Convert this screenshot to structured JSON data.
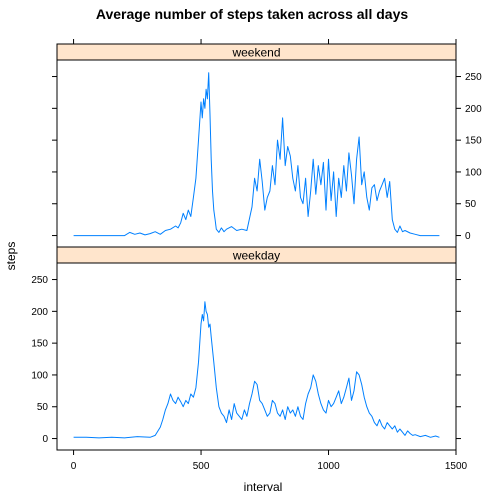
{
  "chart_data": {
    "type": "line",
    "title": "Average number of steps taken across all days",
    "xlabel": "interval",
    "ylabel": "steps",
    "xlim": [
      -65,
      1500
    ],
    "ylim": [
      -18,
      276
    ],
    "x_ticks": [
      0,
      500,
      1000,
      1500
    ],
    "y_ticks": [
      0,
      50,
      100,
      150,
      200,
      250
    ],
    "panels": [
      {
        "name": "weekend",
        "y_axis_side": "right",
        "series": [
          {
            "name": "weekend",
            "x": [
              0,
              100,
              200,
              220,
              240,
              260,
              280,
              300,
              320,
              340,
              360,
              380,
              400,
              410,
              420,
              430,
              440,
              450,
              460,
              470,
              480,
              490,
              500,
              505,
              510,
              515,
              520,
              525,
              530,
              535,
              540,
              545,
              550,
              555,
              560,
              570,
              580,
              590,
              600,
              620,
              640,
              660,
              680,
              700,
              710,
              720,
              730,
              740,
              750,
              760,
              770,
              780,
              790,
              800,
              810,
              820,
              830,
              840,
              850,
              860,
              870,
              880,
              890,
              900,
              910,
              920,
              930,
              940,
              950,
              960,
              970,
              980,
              990,
              1000,
              1010,
              1020,
              1030,
              1040,
              1050,
              1060,
              1070,
              1080,
              1090,
              1100,
              1110,
              1120,
              1130,
              1140,
              1150,
              1160,
              1170,
              1180,
              1190,
              1200,
              1210,
              1220,
              1230,
              1240,
              1250,
              1260,
              1270,
              1280,
              1290,
              1300,
              1320,
              1340,
              1360,
              1380,
              1400,
              1435
            ],
            "y": [
              0,
              0,
              0,
              5,
              2,
              4,
              1,
              3,
              6,
              2,
              8,
              10,
              15,
              12,
              20,
              35,
              25,
              40,
              30,
              60,
              90,
              150,
              210,
              185,
              215,
              200,
              230,
              215,
              256,
              190,
              120,
              70,
              40,
              25,
              10,
              5,
              12,
              6,
              10,
              14,
              8,
              10,
              8,
              45,
              90,
              70,
              120,
              85,
              40,
              60,
              70,
              110,
              80,
              150,
              120,
              185,
              110,
              140,
              125,
              90,
              70,
              110,
              60,
              50,
              90,
              30,
              70,
              120,
              65,
              110,
              80,
              115,
              40,
              120,
              55,
              100,
              30,
              90,
              60,
              110,
              70,
              130,
              95,
              50,
              120,
              155,
              80,
              100,
              60,
              40,
              75,
              80,
              55,
              70,
              80,
              90,
              60,
              85,
              25,
              10,
              5,
              15,
              6,
              8,
              4,
              2,
              0,
              0,
              0,
              0
            ]
          }
        ]
      },
      {
        "name": "weekday",
        "y_axis_side": "left",
        "series": [
          {
            "name": "weekday",
            "x": [
              0,
              50,
              100,
              150,
              200,
              250,
              300,
              320,
              340,
              350,
              360,
              370,
              380,
              390,
              400,
              410,
              420,
              430,
              440,
              450,
              460,
              470,
              480,
              490,
              500,
              505,
              510,
              515,
              520,
              525,
              530,
              535,
              540,
              550,
              560,
              570,
              580,
              590,
              600,
              610,
              620,
              630,
              640,
              650,
              660,
              670,
              680,
              690,
              700,
              710,
              720,
              730,
              740,
              750,
              760,
              770,
              780,
              790,
              800,
              810,
              820,
              830,
              840,
              850,
              860,
              870,
              880,
              890,
              900,
              910,
              920,
              930,
              940,
              950,
              960,
              970,
              980,
              990,
              1000,
              1010,
              1020,
              1030,
              1040,
              1050,
              1060,
              1070,
              1080,
              1090,
              1100,
              1110,
              1120,
              1130,
              1140,
              1150,
              1160,
              1170,
              1180,
              1190,
              1200,
              1210,
              1220,
              1230,
              1240,
              1250,
              1260,
              1270,
              1280,
              1290,
              1300,
              1310,
              1320,
              1330,
              1340,
              1360,
              1380,
              1400,
              1420,
              1435
            ],
            "y": [
              2,
              2,
              1,
              2,
              1,
              3,
              2,
              5,
              18,
              30,
              45,
              55,
              70,
              60,
              55,
              65,
              58,
              50,
              60,
              55,
              70,
              65,
              80,
              120,
              180,
              195,
              185,
              215,
              200,
              195,
              175,
              180,
              160,
              120,
              80,
              50,
              40,
              35,
              25,
              45,
              30,
              55,
              40,
              35,
              30,
              45,
              35,
              55,
              70,
              90,
              85,
              60,
              55,
              45,
              35,
              40,
              60,
              55,
              40,
              35,
              45,
              30,
              50,
              40,
              45,
              35,
              50,
              35,
              30,
              55,
              70,
              80,
              100,
              90,
              70,
              55,
              45,
              40,
              60,
              50,
              55,
              65,
              75,
              55,
              65,
              80,
              95,
              60,
              75,
              105,
              100,
              85,
              65,
              50,
              40,
              35,
              25,
              20,
              30,
              20,
              15,
              25,
              20,
              15,
              20,
              10,
              15,
              10,
              5,
              12,
              8,
              5,
              6,
              3,
              5,
              2,
              4,
              2
            ]
          }
        ]
      }
    ],
    "colors": {
      "line": "#0080ff",
      "strip": "#ffe5cc",
      "axis": "#000000"
    }
  }
}
